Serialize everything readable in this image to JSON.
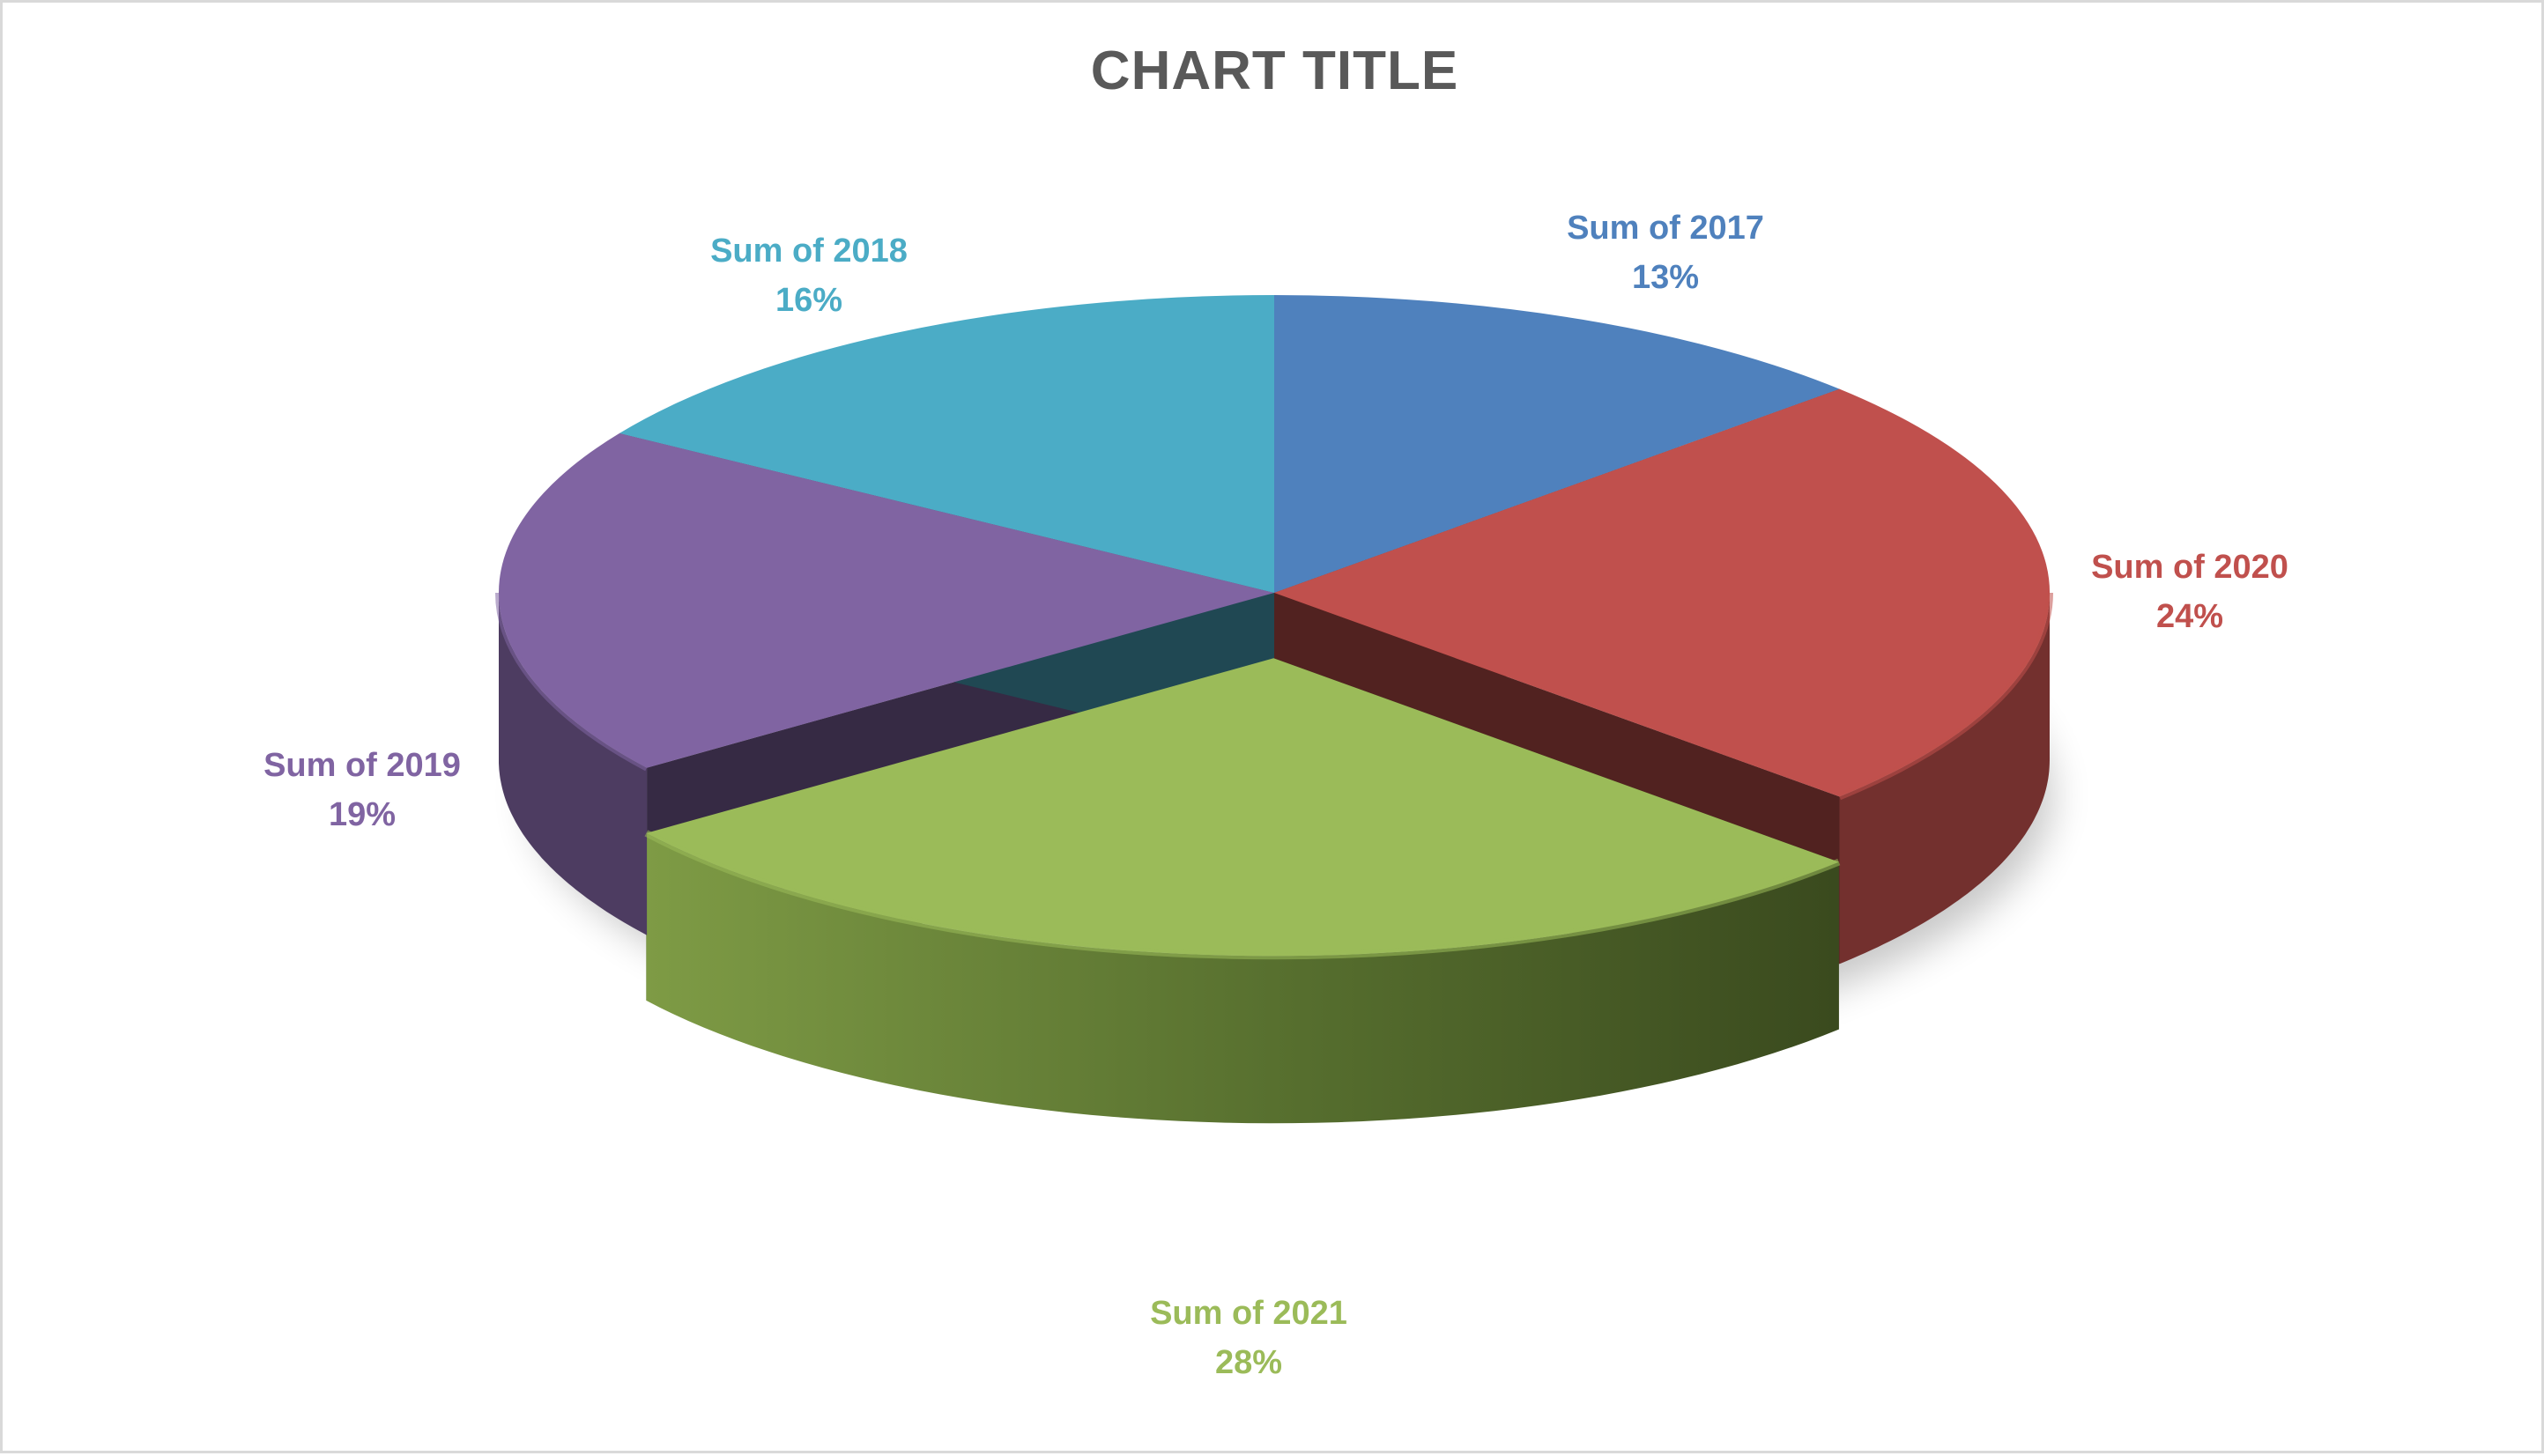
{
  "chart": {
    "title": "CHART TITLE"
  },
  "chart_data": {
    "type": "pie",
    "title": "CHART TITLE",
    "three_d": true,
    "exploded_slice": "Sum of 2021",
    "slices": [
      {
        "name": "Sum of 2017",
        "percent": 13,
        "label": "13%",
        "color": "#4f81bd"
      },
      {
        "name": "Sum of 2020",
        "percent": 24,
        "label": "24%",
        "color": "#c0504d"
      },
      {
        "name": "Sum of 2021",
        "percent": 28,
        "label": "28%",
        "color": "#9bbb59"
      },
      {
        "name": "Sum of 2019",
        "percent": 19,
        "label": "19%",
        "color": "#8064a2"
      },
      {
        "name": "Sum of 2018",
        "percent": 16,
        "label": "16%",
        "color": "#4bacc6"
      }
    ],
    "legend": "none",
    "data_labels": "outside"
  }
}
